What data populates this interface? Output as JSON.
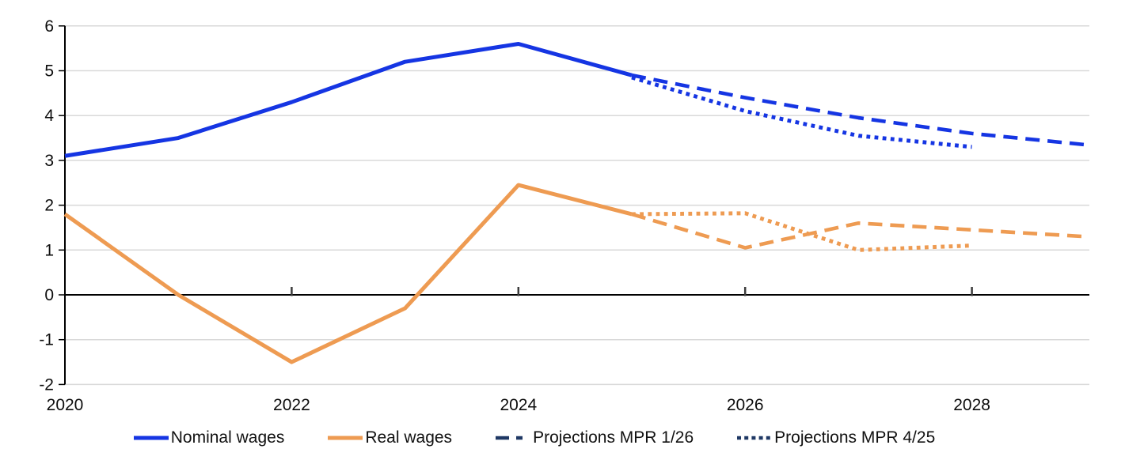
{
  "chart_data": {
    "type": "line",
    "title": "",
    "xlabel": "",
    "ylabel": "",
    "background_color": "#ffffff",
    "gridline_color": "#d9d9d9",
    "axis_color": "#000000",
    "zero_line_color": "#000000",
    "x_axis": {
      "min": 2020,
      "max": 2029,
      "label_years": [
        2020,
        2022,
        2024,
        2026,
        2028
      ],
      "labels": [
        "2020",
        "2022",
        "2024",
        "2026",
        "2028"
      ],
      "tick_years": [
        2022,
        2024,
        2026,
        2028
      ]
    },
    "y_axis": {
      "min": -2,
      "max": 6,
      "tick_step": 1,
      "ticks": [
        6,
        5,
        4,
        3,
        2,
        1,
        0,
        -1,
        -2
      ],
      "labels": [
        "6",
        "5",
        "4",
        "3",
        "2",
        "1",
        "0",
        "-1",
        "-2"
      ]
    },
    "series": [
      {
        "name": "Nominal wages",
        "color": "#1535e3",
        "line_style": "solid",
        "x": [
          2020,
          2021,
          2022,
          2023,
          2024,
          2025
        ],
        "y": [
          3.1,
          3.5,
          4.3,
          5.2,
          5.6,
          4.9
        ]
      },
      {
        "name": "Real wages",
        "color": "#ee9b52",
        "line_style": "solid",
        "x": [
          2020,
          2021,
          2022,
          2023,
          2024,
          2025
        ],
        "y": [
          1.8,
          0.0,
          -1.5,
          -0.3,
          2.45,
          1.8
        ]
      },
      {
        "name": "Projections MPR 1/26 (nominal wages)",
        "color": "#1535e3",
        "line_style": "dashed",
        "x": [
          2025,
          2026,
          2027,
          2028,
          2029
        ],
        "y": [
          4.9,
          4.4,
          3.95,
          3.6,
          3.35
        ]
      },
      {
        "name": "Projections MPR 4/25 (nominal wages)",
        "color": "#1535e3",
        "line_style": "dotted",
        "x": [
          2025,
          2026,
          2027,
          2028
        ],
        "y": [
          4.85,
          4.1,
          3.55,
          3.3
        ]
      },
      {
        "name": "Projections MPR 1/26 (real wages)",
        "color": "#ee9b52",
        "line_style": "dashed",
        "x": [
          2025,
          2026,
          2027,
          2028,
          2029
        ],
        "y": [
          1.8,
          1.05,
          1.6,
          1.45,
          1.3
        ]
      },
      {
        "name": "Projections MPR 4/25 (real wages)",
        "color": "#ee9b52",
        "line_style": "dotted",
        "x": [
          2025,
          2026,
          2027,
          2028
        ],
        "y": [
          1.8,
          1.82,
          1.0,
          1.1
        ]
      }
    ],
    "legend": [
      {
        "label": "Nominal wages",
        "color": "#1535e3",
        "style": "solid"
      },
      {
        "label": "Real wages",
        "color": "#ee9b52",
        "style": "solid"
      },
      {
        "label": "Projections MPR 1/26",
        "color": "#1f3864",
        "style": "dashed"
      },
      {
        "label": "Projections MPR 4/25",
        "color": "#1f3864",
        "style": "dotted"
      }
    ],
    "legend_position": "bottom-center",
    "grid": "horizontal"
  }
}
